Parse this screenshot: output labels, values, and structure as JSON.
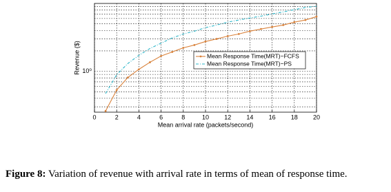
{
  "chart_data": {
    "type": "line",
    "x_label": "Mean arrival rate (packets/second)",
    "y_label": "Revenue ($)",
    "x": [
      1,
      2,
      3,
      4,
      5,
      6,
      7,
      8,
      9,
      10,
      11,
      12,
      13,
      14,
      15,
      16,
      17,
      18,
      19,
      20
    ],
    "series": [
      {
        "name": "Mean Response Time(MRT)−FCFS",
        "color": "#d9823b",
        "style": "solid-dot",
        "values": [
          0.26,
          0.53,
          0.81,
          1.07,
          1.36,
          1.68,
          1.93,
          2.22,
          2.44,
          2.75,
          3.0,
          3.3,
          3.55,
          3.9,
          4.2,
          4.5,
          4.8,
          5.3,
          5.7,
          6.4
        ]
      },
      {
        "name": "Mean Response Time(MRT)−PS",
        "color": "#2ab5c8",
        "style": "dash-dot",
        "values": [
          0.47,
          0.89,
          1.3,
          1.72,
          2.17,
          2.6,
          3.1,
          3.55,
          3.9,
          4.4,
          4.8,
          5.3,
          5.7,
          6.1,
          6.5,
          7.0,
          7.5,
          8.1,
          8.7,
          9.1
        ]
      }
    ],
    "xlim": [
      0,
      20
    ],
    "xticks": [
      0,
      2,
      4,
      6,
      8,
      10,
      12,
      14,
      16,
      18,
      20
    ],
    "ylim": [
      0.25,
      10
    ],
    "y_log": true,
    "yticks": [
      {
        "value": 1,
        "label": "10⁰"
      }
    ],
    "y_minor_ticks": [
      0.3,
      0.4,
      0.5,
      0.6,
      0.7,
      0.8,
      0.9,
      2,
      3,
      4,
      5,
      6,
      7,
      8,
      9
    ],
    "grid": true,
    "legend": "right"
  },
  "caption": {
    "label": "Figure 8:",
    "text": " Variation of revenue with arrival rate in terms of mean of response time."
  }
}
